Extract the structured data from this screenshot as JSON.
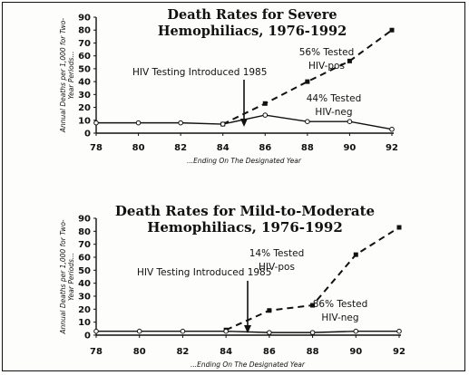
{
  "chart_data": [
    {
      "type": "line",
      "title": [
        "Death Rates for Severe",
        "Hemophiliacs, 1976-1992"
      ],
      "ylabel": [
        "Annual Deaths per 1,000 for Two-",
        "Year Periods..."
      ],
      "xlabel": "...Ending On The Designated Year",
      "ylim": [
        0,
        90
      ],
      "xlim": [
        78,
        92
      ],
      "yticks": [
        0,
        10,
        20,
        30,
        40,
        50,
        60,
        70,
        80,
        90
      ],
      "xticks": [
        78,
        80,
        82,
        84,
        86,
        88,
        90,
        92
      ],
      "series": [
        {
          "name": "56% Tested HIV-pos",
          "style": "dashed",
          "marker": "filled-square",
          "x": [
            84,
            86,
            88,
            90,
            92
          ],
          "y": [
            7,
            23,
            40,
            56,
            80
          ]
        },
        {
          "name": "44% Tested HIV-neg",
          "style": "solid",
          "marker": "open-circle",
          "x": [
            78,
            80,
            82,
            84,
            86,
            88,
            90,
            92
          ],
          "y": [
            8,
            8,
            8,
            7,
            14,
            9,
            9,
            3
          ]
        }
      ],
      "annotations": {
        "event": "HIV Testing Introduced 1985",
        "event_x": 85,
        "pos_label": [
          "56% Tested",
          "HIV-pos"
        ],
        "neg_label": [
          "44% Tested",
          "HIV-neg"
        ]
      }
    },
    {
      "type": "line",
      "title": [
        "Death Rates for Mild-to-Moderate",
        "Hemophiliacs, 1976-1992"
      ],
      "ylabel": [
        "Annual Deaths per 1,000 for Two-",
        "Year Periods..."
      ],
      "xlabel": "...Ending On The Designated Year",
      "ylim": [
        0,
        90
      ],
      "xlim": [
        78,
        92
      ],
      "yticks": [
        0,
        10,
        20,
        30,
        40,
        50,
        60,
        70,
        80,
        90
      ],
      "xticks": [
        78,
        80,
        82,
        84,
        86,
        88,
        90,
        92
      ],
      "series": [
        {
          "name": "14% Tested HIV-pos",
          "style": "dashed",
          "marker": "filled-square",
          "x": [
            84,
            86,
            88,
            90,
            92
          ],
          "y": [
            4,
            19,
            23,
            62,
            83
          ]
        },
        {
          "name": "86% Tested HIV-neg",
          "style": "solid",
          "marker": "open-circle",
          "x": [
            78,
            80,
            82,
            84,
            86,
            88,
            90,
            92
          ],
          "y": [
            3,
            3,
            3,
            3,
            2,
            2,
            3,
            3
          ]
        }
      ],
      "annotations": {
        "event": "HIV Testing Introduced 1985",
        "event_x": 85,
        "pos_label": [
          "14% Tested",
          "HIV-pos"
        ],
        "neg_label": [
          "86% Tested",
          "HIV-neg"
        ]
      }
    }
  ]
}
